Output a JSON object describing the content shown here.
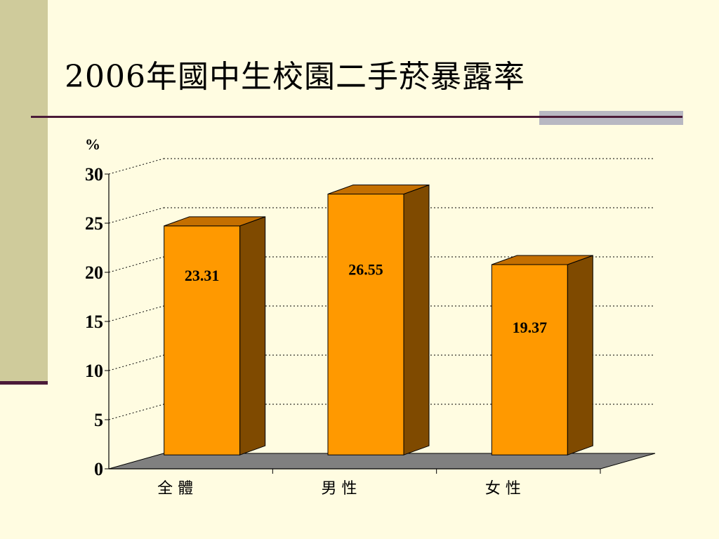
{
  "slide": {
    "title": "2006年國中生校園二手菸暴露率"
  },
  "chart_data": {
    "type": "bar",
    "title": "2006年國中生校園二手菸暴露率",
    "ylabel": "%",
    "xlabel": "",
    "ylim": [
      0,
      30
    ],
    "yticks": [
      0,
      5,
      10,
      15,
      20,
      25,
      30
    ],
    "categories": [
      "全 體",
      "男 性",
      "女 性"
    ],
    "values": [
      23.31,
      26.55,
      19.37
    ],
    "data_labels": [
      "23.31",
      "26.55",
      "19.37"
    ],
    "grid": true,
    "legend": "none",
    "colors": {
      "bar_front": "#FF9900",
      "bar_side": "#7F4A00",
      "bar_top": "#C46F00",
      "floor": "#808080",
      "grid": "#000000"
    }
  }
}
